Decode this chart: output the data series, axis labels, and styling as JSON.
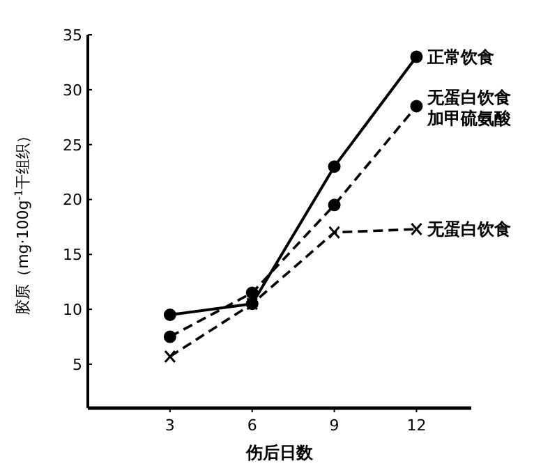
{
  "chart_data": {
    "type": "line",
    "xlabel": "伤后日数",
    "ylabel": "胶原（mg·100g$^{-1}$干组织）",
    "x": [
      3,
      6,
      9,
      12
    ],
    "xlim": [
      0,
      14
    ],
    "xticks": [
      3,
      6,
      9,
      12
    ],
    "ylim": [
      1,
      35
    ],
    "yticks": [
      5,
      10,
      15,
      20,
      25,
      30,
      35
    ],
    "grid": false,
    "legend": false,
    "series": [
      {
        "name": "正常饮食",
        "color": "#000000",
        "marker": "circle",
        "line_style": "solid",
        "values": [
          9.5,
          10.5,
          23,
          33
        ]
      },
      {
        "name": "无蛋白饮食加甲硫氨酸",
        "color": "#000000",
        "marker": "circle",
        "line_style": "dashed",
        "values": [
          7.5,
          11.5,
          19.5,
          28.5
        ]
      },
      {
        "name": "无蛋白饮食",
        "color": "#000000",
        "marker": "cross",
        "line_style": "dashed",
        "values": [
          5.7,
          10.5,
          17,
          17.3
        ]
      }
    ]
  }
}
